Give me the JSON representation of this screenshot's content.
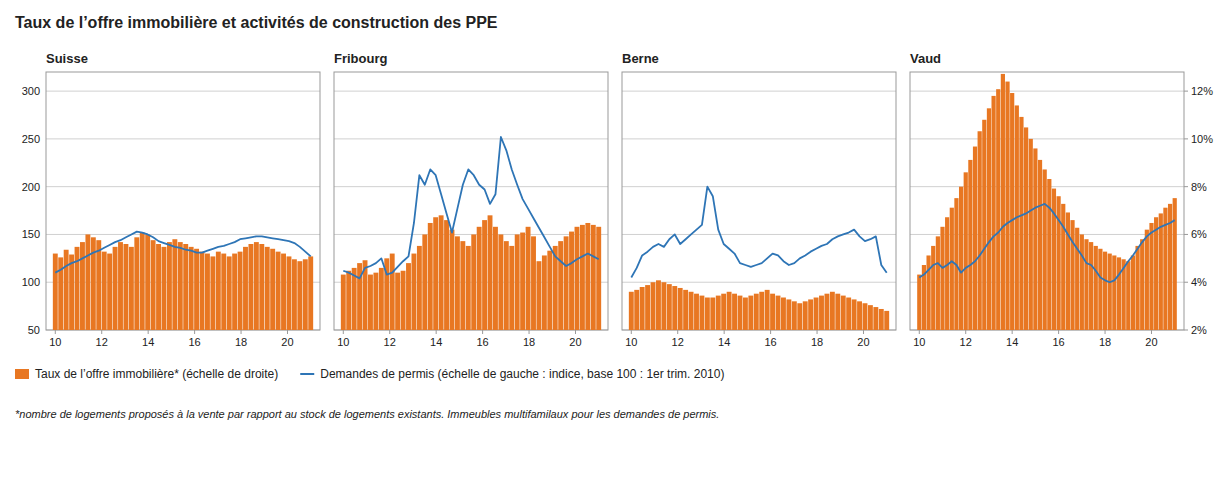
{
  "title": "Taux de l’offre immobilière et activités de construction des PPE",
  "annotations": [
    "*nombre de logements proposés à la vente par rapport au stock de logements existants. Immeubles multifamilaux pour les demandes de permis."
  ],
  "chart_data": [
    {
      "type": "bar",
      "title": "Suisse",
      "legend": "lower left",
      "grid": true,
      "xlim": [
        9.6,
        21.4
      ],
      "xticks": [
        10,
        12,
        14,
        16,
        18,
        20
      ],
      "ylim": [
        50,
        320
      ],
      "yticks": [
        50,
        100,
        150,
        200,
        250,
        300
      ],
      "series": [
        {
          "name": "Taux de l’offre immobilière* (échelle de droite)",
          "type": "bar",
          "color": "#E87722",
          "values": [
            130,
            126,
            134,
            129,
            137,
            142,
            150,
            147,
            144,
            132,
            130,
            137,
            142,
            140,
            137,
            147,
            152,
            150,
            144,
            140,
            137,
            142,
            145,
            142,
            140,
            137,
            135,
            132,
            130,
            127,
            132,
            130,
            127,
            130,
            132,
            137,
            140,
            142,
            140,
            137,
            135,
            132,
            130,
            127,
            124,
            122,
            124,
            127
          ]
        },
        {
          "name": "Demandes de permis (échelle de gauche : indice, base 100 : 1er trim. 2010)",
          "type": "line",
          "color": "#2E75B6",
          "values": [
            110,
            113,
            117,
            120,
            122,
            125,
            128,
            131,
            133,
            136,
            139,
            142,
            144,
            147,
            150,
            153,
            152,
            150,
            147,
            143,
            141,
            139,
            137,
            136,
            134,
            133,
            131,
            131,
            133,
            135,
            137,
            138,
            140,
            142,
            145,
            146,
            147,
            148,
            148,
            147,
            146,
            145,
            144,
            143,
            141,
            137,
            132,
            127
          ]
        }
      ]
    },
    {
      "type": "bar",
      "title": "Fribourg",
      "grid": true,
      "tick_labels": "x",
      "xlim": [
        9.6,
        21.4
      ],
      "xticks": [
        10,
        12,
        14,
        16,
        18,
        20
      ],
      "ylim": [
        50,
        320
      ],
      "yticks": [
        50,
        100,
        150,
        200,
        250,
        300
      ],
      "series": [
        {
          "type": "bar",
          "color": "#E87722",
          "values": [
            108,
            112,
            115,
            120,
            123,
            108,
            110,
            115,
            125,
            130,
            110,
            112,
            120,
            130,
            138,
            150,
            162,
            168,
            170,
            165,
            155,
            148,
            143,
            138,
            150,
            158,
            165,
            170,
            158,
            150,
            143,
            138,
            150,
            152,
            158,
            148,
            122,
            128,
            133,
            138,
            143,
            148,
            153,
            158,
            160,
            162,
            160,
            158
          ]
        },
        {
          "type": "line",
          "color": "#2E75B6",
          "values": [
            112,
            110,
            107,
            104,
            115,
            117,
            120,
            125,
            108,
            110,
            116,
            122,
            127,
            162,
            212,
            202,
            218,
            212,
            192,
            172,
            152,
            177,
            202,
            218,
            212,
            202,
            197,
            182,
            192,
            252,
            238,
            218,
            202,
            187,
            177,
            167,
            157,
            147,
            137,
            127,
            122,
            117,
            120,
            124,
            127,
            130,
            127,
            124
          ]
        }
      ]
    },
    {
      "type": "bar",
      "title": "Berne",
      "grid": true,
      "tick_labels": "x",
      "xlim": [
        9.6,
        21.4
      ],
      "xticks": [
        10,
        12,
        14,
        16,
        18,
        20
      ],
      "ylim": [
        50,
        320
      ],
      "yticks": [
        50,
        100,
        150,
        200,
        250,
        300
      ],
      "series": [
        {
          "type": "bar",
          "color": "#E87722",
          "values": [
            90,
            92,
            95,
            97,
            100,
            102,
            100,
            98,
            96,
            94,
            92,
            90,
            88,
            86,
            84,
            84,
            86,
            88,
            90,
            88,
            86,
            84,
            86,
            88,
            90,
            92,
            88,
            86,
            84,
            82,
            80,
            78,
            80,
            82,
            84,
            86,
            88,
            90,
            88,
            86,
            84,
            82,
            80,
            78,
            76,
            74,
            72,
            70
          ]
        },
        {
          "type": "line",
          "color": "#2E75B6",
          "values": [
            105,
            115,
            128,
            132,
            137,
            140,
            137,
            145,
            150,
            140,
            145,
            150,
            155,
            160,
            200,
            190,
            155,
            140,
            135,
            130,
            120,
            118,
            116,
            118,
            120,
            125,
            130,
            128,
            122,
            118,
            120,
            125,
            128,
            132,
            135,
            138,
            140,
            145,
            148,
            150,
            152,
            155,
            148,
            143,
            145,
            148,
            118,
            110
          ]
        }
      ]
    },
    {
      "type": "bar",
      "title": "Vaud",
      "grid": true,
      "tick_labels": "x",
      "xlim": [
        9.6,
        21.4
      ],
      "xticks": [
        10,
        12,
        14,
        16,
        18,
        20
      ],
      "ylim": [
        50,
        320
      ],
      "yticks": [
        50,
        100,
        150,
        200,
        250,
        300
      ],
      "y2lim": [
        0.02,
        0.128
      ],
      "y2ticks": [
        {
          "value": 0.02,
          "label": "2%"
        },
        {
          "value": 0.04,
          "label": "4%"
        },
        {
          "value": 0.06,
          "label": "6%"
        },
        {
          "value": 0.08,
          "label": "8%"
        },
        {
          "value": 0.1,
          "label": "10%"
        },
        {
          "value": 0.12,
          "label": "12%"
        }
      ],
      "series": [
        {
          "type": "bar",
          "color": "#E87722",
          "values": [
            108,
            118,
            128,
            138,
            148,
            158,
            168,
            178,
            188,
            200,
            215,
            228,
            242,
            258,
            270,
            282,
            295,
            302,
            318,
            310,
            298,
            285,
            273,
            262,
            250,
            240,
            228,
            218,
            208,
            198,
            190,
            182,
            173,
            165,
            157,
            150,
            145,
            142,
            138,
            135,
            132,
            130,
            128,
            126,
            124,
            122,
            128,
            138,
            145,
            155,
            162,
            168,
            172,
            178,
            182,
            188
          ]
        },
        {
          "type": "line",
          "color": "#2E75B6",
          "values": [
            105,
            108,
            113,
            118,
            120,
            115,
            118,
            122,
            118,
            110,
            115,
            118,
            122,
            128,
            135,
            142,
            148,
            152,
            158,
            162,
            165,
            168,
            170,
            172,
            175,
            178,
            180,
            182,
            178,
            172,
            165,
            158,
            150,
            142,
            135,
            128,
            120,
            118,
            112,
            105,
            102,
            100,
            102,
            108,
            115,
            122,
            128,
            135,
            142,
            148,
            152,
            155,
            158,
            160,
            162,
            165
          ]
        }
      ]
    }
  ]
}
